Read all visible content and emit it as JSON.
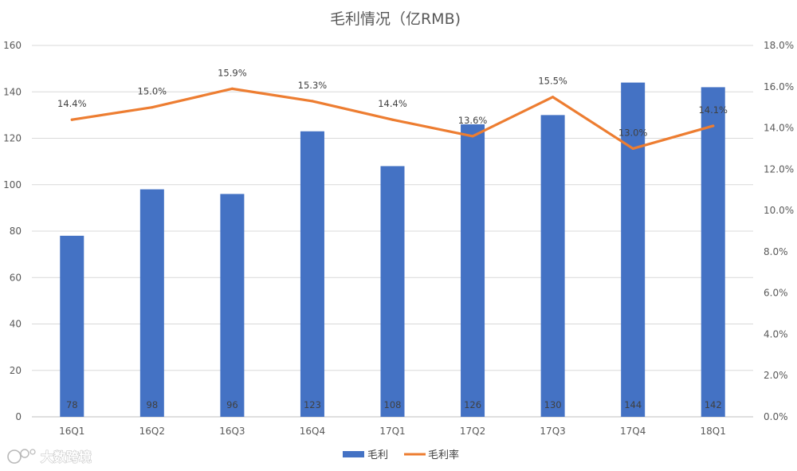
{
  "chart_data": {
    "type": "bar+line",
    "title": "毛利情况（亿RMB)",
    "categories": [
      "16Q1",
      "16Q2",
      "16Q3",
      "16Q4",
      "17Q1",
      "17Q2",
      "17Q3",
      "17Q4",
      "18Q1"
    ],
    "series": [
      {
        "name": "毛利",
        "type": "bar",
        "axis": "left",
        "color": "#4472C4",
        "values": [
          78,
          98,
          96,
          123,
          108,
          126,
          130,
          144,
          142
        ],
        "data_labels": [
          "78",
          "98",
          "96",
          "123",
          "108",
          "126",
          "130",
          "144",
          "142"
        ]
      },
      {
        "name": "毛利率",
        "type": "line",
        "axis": "right",
        "color": "#ED7D31",
        "values": [
          14.4,
          15.0,
          15.9,
          15.3,
          14.4,
          13.6,
          15.5,
          13.0,
          14.1
        ],
        "data_labels": [
          "14.4%",
          "15.0%",
          "15.9%",
          "15.3%",
          "14.4%",
          "13.6%",
          "15.5%",
          "13.0%",
          "14.1%"
        ]
      }
    ],
    "y_left": {
      "min": 0,
      "max": 160,
      "ticks": [
        0,
        20,
        40,
        60,
        80,
        100,
        120,
        140,
        160
      ],
      "tick_labels": [
        "0",
        "20",
        "40",
        "60",
        "80",
        "100",
        "120",
        "140",
        "160"
      ]
    },
    "y_right": {
      "min": 0,
      "max": 18,
      "ticks": [
        0,
        2,
        4,
        6,
        8,
        10,
        12,
        14,
        16,
        18
      ],
      "tick_labels": [
        "0.0%",
        "2.0%",
        "4.0%",
        "6.0%",
        "8.0%",
        "10.0%",
        "12.0%",
        "14.0%",
        "16.0%",
        "18.0%"
      ]
    },
    "grid": true,
    "legend": {
      "position": "bottom",
      "entries": [
        "毛利",
        "毛利率"
      ]
    }
  },
  "watermark": {
    "text": "大数跨境",
    "icon": "brand-logo-icon"
  }
}
